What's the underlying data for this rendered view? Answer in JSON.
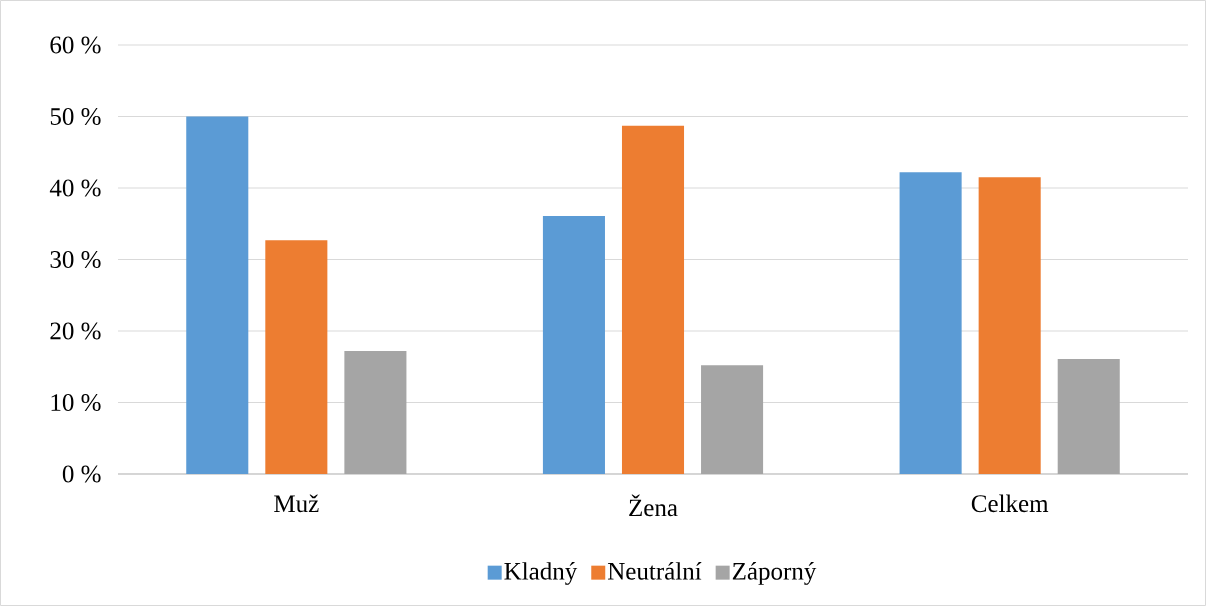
{
  "chart_data": {
    "type": "bar",
    "categories": [
      "Muž",
      "Žena",
      "Celkem"
    ],
    "series": [
      {
        "name": "Kladný",
        "color": "#5b9bd5",
        "values": [
          50,
          36.1,
          42.2
        ]
      },
      {
        "name": "Neutrální",
        "color": "#ed7d31",
        "values": [
          32.7,
          48.7,
          41.5
        ]
      },
      {
        "name": "Záporný",
        "color": "#a5a5a5",
        "values": [
          17.2,
          15.2,
          16.1
        ]
      }
    ],
    "ylim": [
      0,
      60
    ],
    "yticks": [
      {
        "value": 0,
        "label": "0 %"
      },
      {
        "value": 10,
        "label": "10 %"
      },
      {
        "value": 20,
        "label": "20 %"
      },
      {
        "value": 30,
        "label": "30 %"
      },
      {
        "value": 40,
        "label": "40 %"
      },
      {
        "value": 50,
        "label": "50 %"
      },
      {
        "value": 60,
        "label": "60 %"
      }
    ],
    "grid": "y",
    "legend": "bottom"
  }
}
